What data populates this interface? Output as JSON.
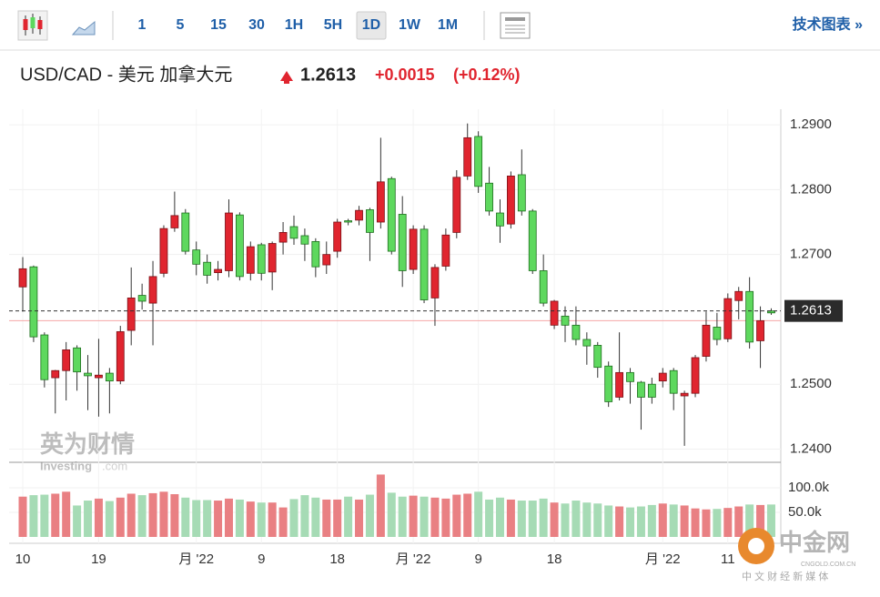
{
  "toolbar": {
    "intervals": [
      "1",
      "5",
      "15",
      "30",
      "1H",
      "5H",
      "1D",
      "1W",
      "1M"
    ],
    "active_index": 6,
    "link": "技术图表 »"
  },
  "header": {
    "title": "USD/CAD - 美元 加拿大元",
    "price": "1.2613",
    "change": "+0.0015",
    "change_pct": "(+0.12%)"
  },
  "watermarks": {
    "brand_cn": "英为财情",
    "brand_en": "Investing",
    "brand_suffix": ".com",
    "logo_cn": "中金网",
    "logo_url": "CNGOLD.COM.CN",
    "logo_sub": "中 文 财 经 新 媒 体"
  },
  "chart_data": {
    "type": "candlestick",
    "categories": [
      "10",
      null,
      null,
      null,
      null,
      null,
      null,
      "19",
      null,
      null,
      null,
      null,
      null,
      null,
      null,
      null,
      "月 '22",
      null,
      null,
      null,
      null,
      null,
      "9",
      null,
      null,
      null,
      null,
      null,
      null,
      "18",
      null,
      null,
      null,
      null,
      null,
      null,
      "月 '22",
      null,
      null,
      null,
      null,
      null,
      "9",
      null,
      null,
      null,
      null,
      null,
      null,
      "18",
      null,
      null,
      null,
      null,
      null,
      null,
      null,
      null,
      null,
      "月 '22",
      null,
      null,
      null,
      null,
      null,
      "11",
      null,
      null,
      null,
      null
    ],
    "open": [
      1.2678,
      1.2573,
      1.2507,
      1.2521,
      1.2553,
      1.2519,
      1.2513,
      1.2514,
      1.2505,
      1.2581,
      1.2633,
      1.2628,
      1.2666,
      1.274,
      1.276,
      1.2705,
      1.2685,
      1.2668,
      1.2677,
      1.2764,
      1.2666,
      1.2712,
      1.2671,
      1.2717,
      1.2734,
      1.2725,
      1.2716,
      1.2681,
      1.27,
      1.275,
      1.275,
      1.2768,
      1.2734,
      1.2812,
      1.2705,
      1.2675,
      1.2739,
      1.263,
      1.268,
      1.273,
      1.2819,
      1.288,
      1.2805,
      1.2767,
      1.2744,
      1.2821,
      1.2767,
      1.2675,
      1.2625,
      1.2628,
      1.2591,
      1.2569,
      1.2559,
      1.2526,
      1.2473,
      1.2518,
      1.2504,
      1.248,
      1.248,
      1.2517,
      1.2486,
      1.2486,
      1.2541,
      1.2591,
      1.2569,
      1.2632,
      1.2643,
      1.2565,
      1.2598,
      1.261
    ],
    "high": [
      1.2696,
      1.2683,
      1.258,
      1.2522,
      1.2565,
      1.256,
      1.2545,
      1.257,
      1.2525,
      1.259,
      1.268,
      1.2655,
      1.269,
      1.2745,
      1.2797,
      1.277,
      1.272,
      1.27,
      1.269,
      1.2785,
      1.2765,
      1.272,
      1.2718,
      1.272,
      1.275,
      1.276,
      1.274,
      1.2725,
      1.272,
      1.2755,
      1.2755,
      1.2775,
      1.2772,
      1.288,
      1.282,
      1.279,
      1.2745,
      1.2745,
      1.2685,
      1.274,
      1.283,
      1.2902,
      1.289,
      1.2835,
      1.2785,
      1.2828,
      1.2862,
      1.277,
      1.27,
      1.263,
      1.262,
      1.262,
      1.258,
      1.2565,
      1.2535,
      1.258,
      1.2525,
      1.2505,
      1.251,
      1.2525,
      1.2525,
      1.249,
      1.2545,
      1.2612,
      1.261,
      1.264,
      1.265,
      1.2665,
      1.262,
      1.2617
    ],
    "low": [
      1.2612,
      1.2565,
      1.2495,
      1.2455,
      1.2475,
      1.249,
      1.246,
      1.245,
      1.2455,
      1.25,
      1.256,
      1.2615,
      1.256,
      1.2665,
      1.2735,
      1.27,
      1.2668,
      1.2655,
      1.266,
      1.2665,
      1.266,
      1.266,
      1.266,
      1.2645,
      1.27,
      1.2715,
      1.269,
      1.2665,
      1.267,
      1.2695,
      1.2745,
      1.2745,
      1.269,
      1.274,
      1.27,
      1.265,
      1.267,
      1.2625,
      1.259,
      1.2675,
      1.2725,
      1.2815,
      1.2795,
      1.276,
      1.2718,
      1.274,
      1.276,
      1.267,
      1.262,
      1.2585,
      1.2565,
      1.256,
      1.253,
      1.251,
      1.2465,
      1.2475,
      1.247,
      1.243,
      1.247,
      1.2495,
      1.246,
      1.2405,
      1.248,
      1.2535,
      1.256,
      1.2565,
      1.26,
      1.2555,
      1.2525,
      1.2607
    ],
    "close": [
      1.265,
      1.2681,
      1.2576,
      1.251,
      1.2521,
      1.2556,
      1.2517,
      1.251,
      1.2517,
      1.2505,
      1.2583,
      1.2637,
      1.2625,
      1.2671,
      1.2741,
      1.2764,
      1.2707,
      1.2688,
      1.2672,
      1.2675,
      1.2761,
      1.2671,
      1.2715,
      1.2673,
      1.2719,
      1.2743,
      1.2729,
      1.272,
      1.2684,
      1.2705,
      1.2752,
      1.2753,
      1.2769,
      1.275,
      1.2817,
      1.2762,
      1.2677,
      1.2739,
      1.2633,
      1.2682,
      1.2734,
      1.2821,
      1.2882,
      1.281,
      1.2764,
      1.2747,
      1.2823,
      1.2767,
      1.2675,
      1.2591,
      1.2605,
      1.2591,
      1.2569,
      1.256,
      1.2528,
      1.248,
      1.2518,
      1.2503,
      1.25,
      1.2505,
      1.2521,
      1.2482,
      1.2486,
      1.2543,
      1.2588,
      1.257,
      1.2629,
      1.2643,
      1.2567,
      1.2613
    ],
    "volume": [
      82000,
      85000,
      86000,
      88000,
      92000,
      64000,
      74000,
      78000,
      73000,
      80000,
      88000,
      85000,
      89000,
      92000,
      87000,
      80000,
      75000,
      75000,
      74000,
      78000,
      76000,
      72000,
      70000,
      70000,
      60000,
      77000,
      85000,
      80000,
      76000,
      76000,
      82000,
      76000,
      86000,
      127000,
      90000,
      82000,
      84000,
      82000,
      80000,
      78000,
      86000,
      88000,
      92000,
      76000,
      80000,
      76000,
      74000,
      74000,
      78000,
      70000,
      68000,
      74000,
      70000,
      68000,
      64000,
      62000,
      60000,
      62000,
      65000,
      68000,
      66000,
      64000,
      58000,
      56000,
      57000,
      59000,
      62000,
      66000,
      65000,
      66000
    ],
    "ylim": [
      1.2381,
      1.2924
    ],
    "yticks": [
      {
        "value": 1.24,
        "label": "1.2400"
      },
      {
        "value": 1.25,
        "label": "1.2500"
      },
      {
        "value": 1.27,
        "label": "1.2700"
      },
      {
        "value": 1.28,
        "label": "1.2800"
      },
      {
        "value": 1.29,
        "label": "1.2900"
      }
    ],
    "volume_ylim": [
      0,
      150000
    ],
    "volume_yticks": [
      {
        "value": 50000,
        "label": "50.0k"
      },
      {
        "value": 100000,
        "label": "100.0k"
      }
    ],
    "last_price": {
      "value": 1.2613,
      "label": "1.2613"
    },
    "reference_line": 1.2598,
    "up_color": "#5ed85e",
    "down_color": "#e0252f",
    "volume_up_color": "#a6dbb5",
    "volume_down_color": "#e98083",
    "grid": true
  }
}
